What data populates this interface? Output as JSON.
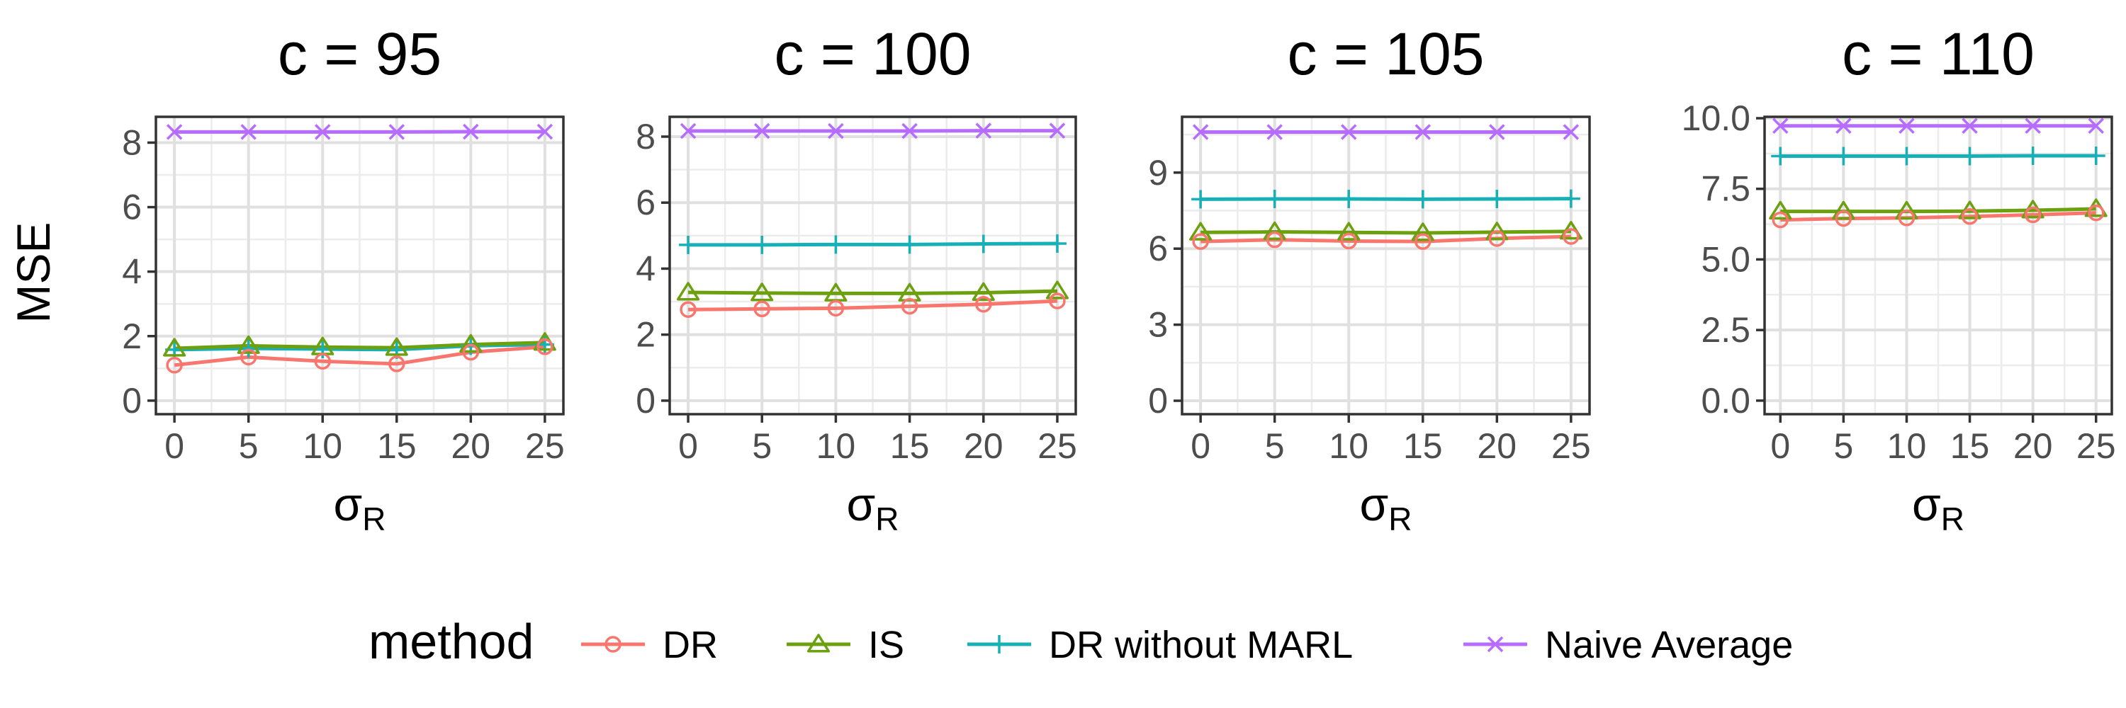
{
  "figure": {
    "ylabel": "MSE",
    "xlabel_main": "σ",
    "xlabel_sub": "R"
  },
  "legend": {
    "title": "method",
    "entries": [
      {
        "name": "DR",
        "color": "#F8766D",
        "marker": "circle"
      },
      {
        "name": "IS",
        "color": "#6CA00F",
        "marker": "triangle"
      },
      {
        "name": "DR without MARL",
        "color": "#17B0B7",
        "marker": "plus"
      },
      {
        "name": "Naive Average",
        "color": "#B66DFF",
        "marker": "cross"
      }
    ]
  },
  "chart_data": [
    {
      "type": "line",
      "title": "c = 95",
      "x": [
        0,
        5,
        10,
        15,
        20,
        25
      ],
      "xlim": [
        -1.25,
        26.25
      ],
      "ylim": [
        -0.42,
        8.8
      ],
      "yticks": [
        0,
        2,
        4,
        6,
        8
      ],
      "ytick_labels": [
        "0",
        "2",
        "4",
        "6",
        "8"
      ],
      "grid": true,
      "series": [
        {
          "name": "DR",
          "values": [
            1.1,
            1.35,
            1.22,
            1.14,
            1.5,
            1.67
          ]
        },
        {
          "name": "IS",
          "values": [
            1.62,
            1.7,
            1.66,
            1.64,
            1.74,
            1.8
          ]
        },
        {
          "name": "DR without MARL",
          "values": [
            1.58,
            1.62,
            1.6,
            1.58,
            1.7,
            1.74
          ]
        },
        {
          "name": "Naive Average",
          "values": [
            8.33,
            8.33,
            8.33,
            8.33,
            8.34,
            8.34
          ]
        }
      ]
    },
    {
      "type": "line",
      "title": "c = 100",
      "x": [
        0,
        5,
        10,
        15,
        20,
        25
      ],
      "xlim": [
        -1.25,
        26.25
      ],
      "ylim": [
        -0.41,
        8.6
      ],
      "yticks": [
        0,
        2,
        4,
        6,
        8
      ],
      "ytick_labels": [
        "0",
        "2",
        "4",
        "6",
        "8"
      ],
      "grid": true,
      "series": [
        {
          "name": "DR",
          "values": [
            2.76,
            2.78,
            2.8,
            2.86,
            2.92,
            3.02
          ]
        },
        {
          "name": "IS",
          "values": [
            3.28,
            3.26,
            3.25,
            3.25,
            3.27,
            3.32
          ]
        },
        {
          "name": "DR without MARL",
          "values": [
            4.72,
            4.72,
            4.73,
            4.73,
            4.75,
            4.76
          ]
        },
        {
          "name": "Naive Average",
          "values": [
            8.17,
            8.17,
            8.17,
            8.17,
            8.18,
            8.18
          ]
        }
      ]
    },
    {
      "type": "line",
      "title": "c = 105",
      "x": [
        0,
        5,
        10,
        15,
        20,
        25
      ],
      "xlim": [
        -1.25,
        26.25
      ],
      "ylim": [
        -0.53,
        11.2
      ],
      "yticks": [
        0,
        3,
        6,
        9
      ],
      "ytick_labels": [
        "0",
        "3",
        "6",
        "9"
      ],
      "grid": true,
      "series": [
        {
          "name": "DR",
          "values": [
            6.28,
            6.35,
            6.3,
            6.28,
            6.4,
            6.48
          ]
        },
        {
          "name": "IS",
          "values": [
            6.64,
            6.66,
            6.64,
            6.62,
            6.65,
            6.68
          ]
        },
        {
          "name": "DR without MARL",
          "values": [
            7.95,
            7.96,
            7.96,
            7.95,
            7.96,
            7.97
          ]
        },
        {
          "name": "Naive Average",
          "values": [
            10.6,
            10.6,
            10.6,
            10.6,
            10.6,
            10.6
          ]
        }
      ]
    },
    {
      "type": "line",
      "title": "c = 110",
      "x": [
        0,
        5,
        10,
        15,
        20,
        25
      ],
      "xlim": [
        -1.25,
        26.25
      ],
      "ylim": [
        -0.48,
        10.05
      ],
      "yticks": [
        0,
        2.5,
        5,
        7.5,
        10
      ],
      "ytick_labels": [
        "0.0",
        "2.5",
        "5.0",
        "7.5",
        "10.0"
      ],
      "grid": true,
      "series": [
        {
          "name": "DR",
          "values": [
            6.4,
            6.45,
            6.47,
            6.52,
            6.58,
            6.65
          ]
        },
        {
          "name": "IS",
          "values": [
            6.7,
            6.7,
            6.7,
            6.71,
            6.74,
            6.79
          ]
        },
        {
          "name": "DR without MARL",
          "values": [
            8.66,
            8.66,
            8.66,
            8.66,
            8.67,
            8.67
          ]
        },
        {
          "name": "Naive Average",
          "values": [
            9.73,
            9.73,
            9.73,
            9.73,
            9.73,
            9.73
          ]
        }
      ]
    }
  ]
}
